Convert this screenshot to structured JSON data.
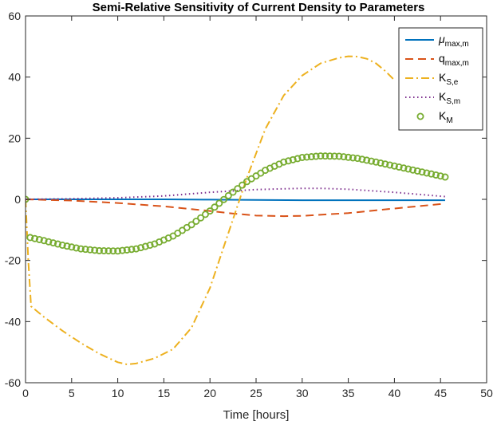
{
  "chart_data": {
    "type": "line",
    "title": "Semi-Relative Sensitivity of Current Density to Parameters",
    "xlabel": "Time [hours]",
    "ylabel": "",
    "xlim": [
      0,
      50
    ],
    "ylim": [
      -60,
      60
    ],
    "xticks": [
      0,
      5,
      10,
      15,
      20,
      25,
      30,
      35,
      40,
      45,
      50
    ],
    "yticks": [
      -60,
      -40,
      -20,
      0,
      20,
      40,
      60
    ],
    "grid": false,
    "legend_position": "top-right",
    "series": [
      {
        "name": "μmax,m",
        "legend_main": "μ",
        "legend_sub": "max,m",
        "style": "solid",
        "color": "#0072BD",
        "x": [
          0,
          5,
          10,
          15,
          20,
          25,
          30,
          35,
          40,
          45.5
        ],
        "y": [
          0,
          0,
          0,
          0,
          -0.1,
          -0.2,
          -0.3,
          -0.3,
          -0.3,
          -0.3
        ]
      },
      {
        "name": "qmax,m",
        "legend_main": "q",
        "legend_sub": "max,m",
        "style": "dashed",
        "color": "#D95319",
        "x": [
          0,
          5,
          10,
          15,
          20,
          22,
          25,
          28,
          30,
          35,
          40,
          45.5
        ],
        "y": [
          0,
          -0.4,
          -1.2,
          -2.3,
          -3.8,
          -4.5,
          -5.3,
          -5.5,
          -5.4,
          -4.5,
          -3,
          -1.4
        ]
      },
      {
        "name": "KS,e",
        "legend_main": "K",
        "legend_sub": "S,e",
        "style": "dashdot",
        "color": "#EDB120",
        "x": [
          0,
          0.3,
          0.6,
          2,
          4,
          6,
          8,
          10,
          11,
          12,
          14,
          16,
          18,
          20,
          22,
          24,
          26,
          28,
          30,
          32,
          34,
          35,
          36,
          37,
          38,
          39,
          40
        ],
        "y": [
          0,
          -20,
          -35,
          -38.5,
          -43,
          -47,
          -50.5,
          -53.3,
          -54,
          -53.7,
          -52,
          -49,
          -42,
          -29,
          -11,
          7,
          23,
          34,
          40.5,
          44.5,
          46.3,
          46.8,
          46.7,
          46,
          44.5,
          42,
          39
        ]
      },
      {
        "name": "KS,m",
        "legend_main": "K",
        "legend_sub": "S,m",
        "style": "dotted",
        "color": "#7E2F8E",
        "x": [
          0,
          5,
          10,
          15,
          20,
          25,
          30,
          32,
          35,
          40,
          45.5
        ],
        "y": [
          0,
          0.2,
          0.5,
          1.1,
          2.3,
          3.2,
          3.6,
          3.6,
          3.3,
          2.3,
          0.9
        ]
      },
      {
        "name": "KM",
        "legend_main": "K",
        "legend_sub": "M",
        "style": "markers",
        "color": "#77AC30",
        "x": [
          0,
          0.5,
          2,
          4,
          6,
          8,
          10,
          12,
          14,
          16,
          18,
          20,
          22,
          24,
          26,
          28,
          30,
          32,
          34,
          36,
          38,
          40,
          42,
          44,
          45.5
        ],
        "y": [
          0,
          -12.5,
          -13.5,
          -15,
          -16.2,
          -16.8,
          -16.9,
          -16.2,
          -14.6,
          -12,
          -8.3,
          -3.8,
          1.2,
          5.8,
          9.5,
          12.2,
          13.7,
          14.2,
          14.1,
          13.4,
          12.2,
          10.9,
          9.6,
          8.3,
          7.3
        ]
      }
    ]
  }
}
